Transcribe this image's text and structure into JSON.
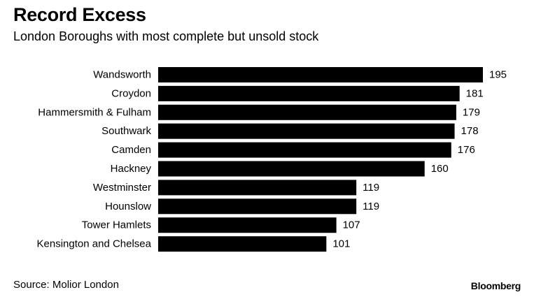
{
  "chart_data": {
    "type": "bar",
    "orientation": "horizontal",
    "title": "Record Excess",
    "subtitle": "London Boroughs with most complete but unsold stock",
    "categories": [
      "Wandsworth",
      "Croydon",
      "Hammersmith & Fulham",
      "Southwark",
      "Camden",
      "Hackney",
      "Westminster",
      "Hounslow",
      "Tower Hamlets",
      "Kensington and Chelsea"
    ],
    "values": [
      195,
      181,
      179,
      178,
      176,
      160,
      119,
      119,
      107,
      101
    ],
    "xlim": [
      0,
      195
    ],
    "xlabel": "",
    "ylabel": "",
    "bar_color": "#000000",
    "grid": false,
    "legend": "none"
  },
  "footer": {
    "source": "Source: Molior London",
    "brand": "Bloomberg"
  }
}
